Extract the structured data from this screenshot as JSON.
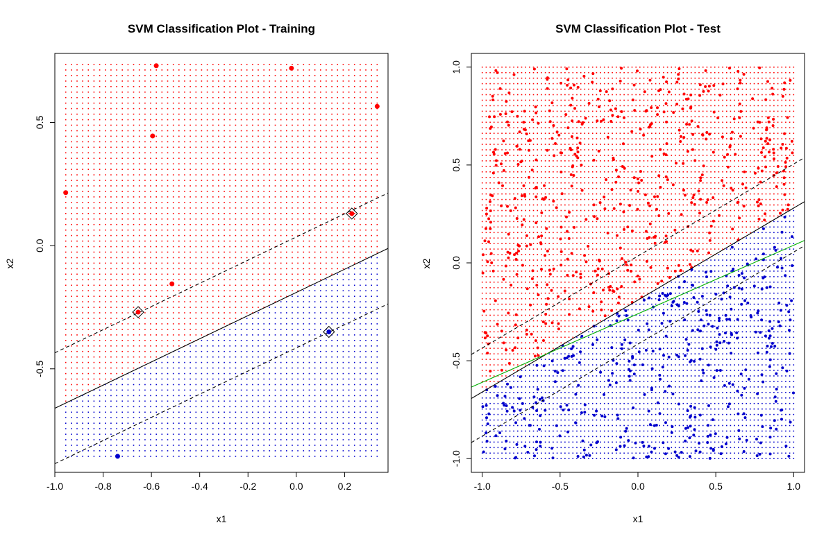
{
  "colors": {
    "class_pos": "#ff0000",
    "class_neg": "#0000cd",
    "margin_line": "#000000",
    "true_boundary": "#00b000"
  },
  "chart_data": [
    {
      "type": "scatter",
      "title": "SVM Classification Plot - Training",
      "xlabel": "x1",
      "ylabel": "x2",
      "xlim": [
        -1.0,
        0.38
      ],
      "ylim": [
        -0.92,
        0.78
      ],
      "xticks": [
        "-1.0",
        "-0.8",
        "-0.6",
        "-0.4",
        "-0.2",
        "0.0",
        "0.2"
      ],
      "xtick_values": [
        -1.0,
        -0.8,
        -0.6,
        -0.4,
        -0.2,
        0.0,
        0.2
      ],
      "yticks": [
        "-0.5",
        "0.0",
        "0.5"
      ],
      "ytick_values": [
        -0.5,
        0.0,
        0.5
      ],
      "grid_range": {
        "x": [
          -0.955,
          0.335
        ],
        "y": [
          -0.855,
          0.735
        ]
      },
      "decision_line": {
        "intercept": -0.19,
        "slope": 0.47
      },
      "margin_offset": 0.225,
      "points": [
        {
          "x": -0.955,
          "y": 0.215,
          "class": "pos",
          "support_vector": false
        },
        {
          "x": -0.58,
          "y": 0.73,
          "class": "pos",
          "support_vector": false
        },
        {
          "x": -0.595,
          "y": 0.445,
          "class": "pos",
          "support_vector": false
        },
        {
          "x": -0.02,
          "y": 0.72,
          "class": "pos",
          "support_vector": false
        },
        {
          "x": 0.335,
          "y": 0.565,
          "class": "pos",
          "support_vector": false
        },
        {
          "x": 0.23,
          "y": 0.13,
          "class": "pos",
          "support_vector": true
        },
        {
          "x": -0.515,
          "y": -0.155,
          "class": "pos",
          "support_vector": false
        },
        {
          "x": -0.655,
          "y": -0.27,
          "class": "pos",
          "support_vector": true
        },
        {
          "x": 0.135,
          "y": -0.35,
          "class": "neg",
          "support_vector": true
        },
        {
          "x": -0.74,
          "y": -0.855,
          "class": "neg",
          "support_vector": false
        }
      ]
    },
    {
      "type": "scatter",
      "title": "SVM Classification Plot - Test",
      "xlabel": "x1",
      "ylabel": "x2",
      "xlim": [
        -1.07,
        1.07
      ],
      "ylim": [
        -1.07,
        1.07
      ],
      "xticks": [
        "-1.0",
        "-0.5",
        "0.0",
        "0.5",
        "1.0"
      ],
      "xtick_values": [
        -1.0,
        -0.5,
        0.0,
        0.5,
        1.0
      ],
      "yticks": [
        "-1.0",
        "-0.5",
        "0.0",
        "0.5",
        "1.0"
      ],
      "ytick_values": [
        -1.0,
        -0.5,
        0.0,
        0.5,
        1.0
      ],
      "grid_range": {
        "x": [
          -1.0,
          1.0
        ],
        "y": [
          -1.0,
          1.0
        ]
      },
      "decision_line": {
        "intercept": -0.19,
        "slope": 0.47
      },
      "margin_offset": 0.225,
      "true_boundary": {
        "intercept": -0.26,
        "slope": 0.35
      },
      "n_points": 1000,
      "points_distribution": "uniform on [-1, 1] x [-1, 1], colored by predicted class"
    }
  ]
}
